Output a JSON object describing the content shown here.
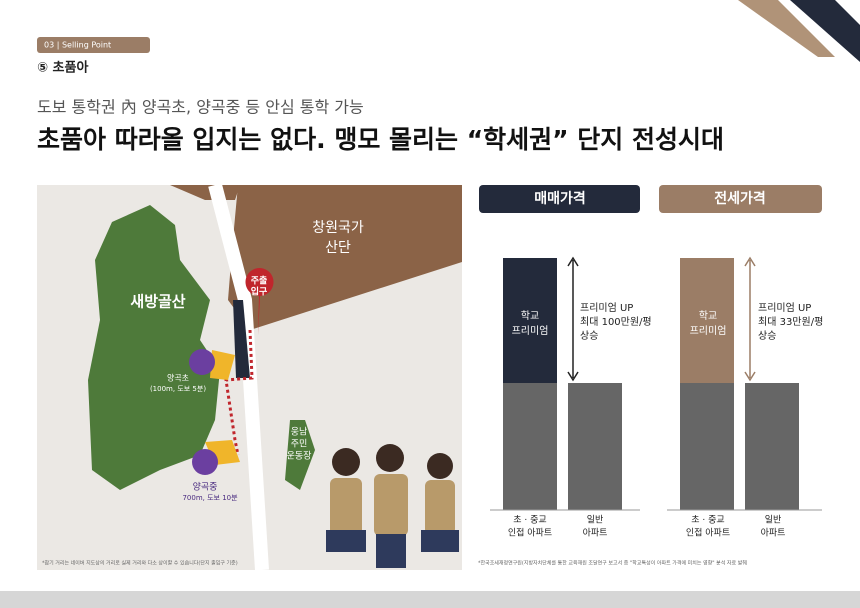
{
  "header": {
    "badge": "03 | Selling Point",
    "section": "⑤ 초품아",
    "subtitle": "도보 통학권 內 양곡초, 양곡중 등 안심 통학 가능",
    "title": "초품아 따라올 입지는 없다. 맹모 몰리는 “학세권” 단지 전성시대"
  },
  "map": {
    "mountain": "새방골산",
    "industrial": [
      "창원국가",
      "산단"
    ],
    "entrance": [
      "주출",
      "입구"
    ],
    "elementary": {
      "name": "양곡초",
      "distance": "(100m, 도보 5분)"
    },
    "middle": {
      "name": "양곡중",
      "distance": "700m, 도보 10분"
    },
    "field": [
      "웅남",
      "주민",
      "운동장"
    ],
    "note": "*참기 거리는 네이버 지도상의 거리로 실제 거리와 다소 상이할 수 있습니다(단지 출입구 기준)"
  },
  "panels": [
    {
      "title": "매매가격",
      "bar_label": [
        "학교",
        "프리미엄"
      ],
      "arrow_text": [
        "프리미엄 UP",
        "최대 100만원/평",
        "상승"
      ],
      "categories": [
        [
          "초 · 중교",
          "인접 아파트"
        ],
        [
          "일반",
          "아파트"
        ]
      ]
    },
    {
      "title": "전세가격",
      "bar_label": [
        "학교",
        "프리미엄"
      ],
      "arrow_text": [
        "프리미엄 UP",
        "최대 33만원/평",
        "상승"
      ],
      "categories": [
        [
          "초 · 중교",
          "인접 아파트"
        ],
        [
          "일반",
          "아파트"
        ]
      ]
    }
  ],
  "source": "*한국조세재정연구원(지방자치단체를 통한 교육재원 조달연구 보고서 중 \"학교특성이 아파트 가격에 미치는 영향\" 분석 자료 발췌"
}
